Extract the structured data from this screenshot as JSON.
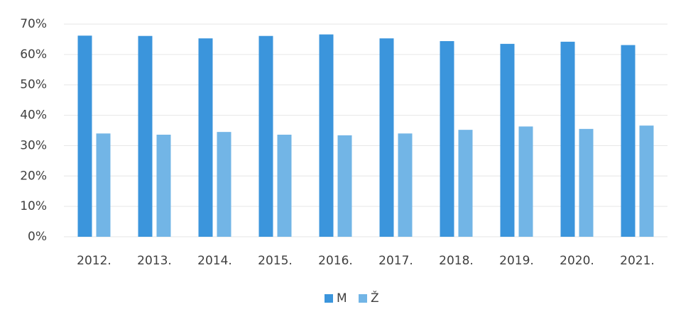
{
  "chart_data": {
    "type": "bar",
    "categories": [
      "2012.",
      "2013.",
      "2014.",
      "2015.",
      "2016.",
      "2017.",
      "2018.",
      "2019.",
      "2020.",
      "2021."
    ],
    "series": [
      {
        "name": "M",
        "color": "#3b95dc",
        "values": [
          66.2,
          66.1,
          65.3,
          66.1,
          66.6,
          65.3,
          64.4,
          63.5,
          64.2,
          63.1
        ]
      },
      {
        "name": "Ž",
        "color": "#72b5e6",
        "values": [
          34,
          33.6,
          34.5,
          33.6,
          33.4,
          34,
          35.2,
          36.3,
          35.5,
          36.6
        ]
      }
    ],
    "ylim": [
      0,
      70
    ],
    "yticks": [
      {
        "value": 0,
        "label": "0%"
      },
      {
        "value": 10,
        "label": "10%"
      },
      {
        "value": 20,
        "label": "20%"
      },
      {
        "value": 30,
        "label": "30%"
      },
      {
        "value": 40,
        "label": "40%"
      },
      {
        "value": 50,
        "label": "50%"
      },
      {
        "value": 60,
        "label": "60%"
      },
      {
        "value": 70,
        "label": "70%"
      }
    ],
    "grid": true,
    "legend": "bottom"
  }
}
